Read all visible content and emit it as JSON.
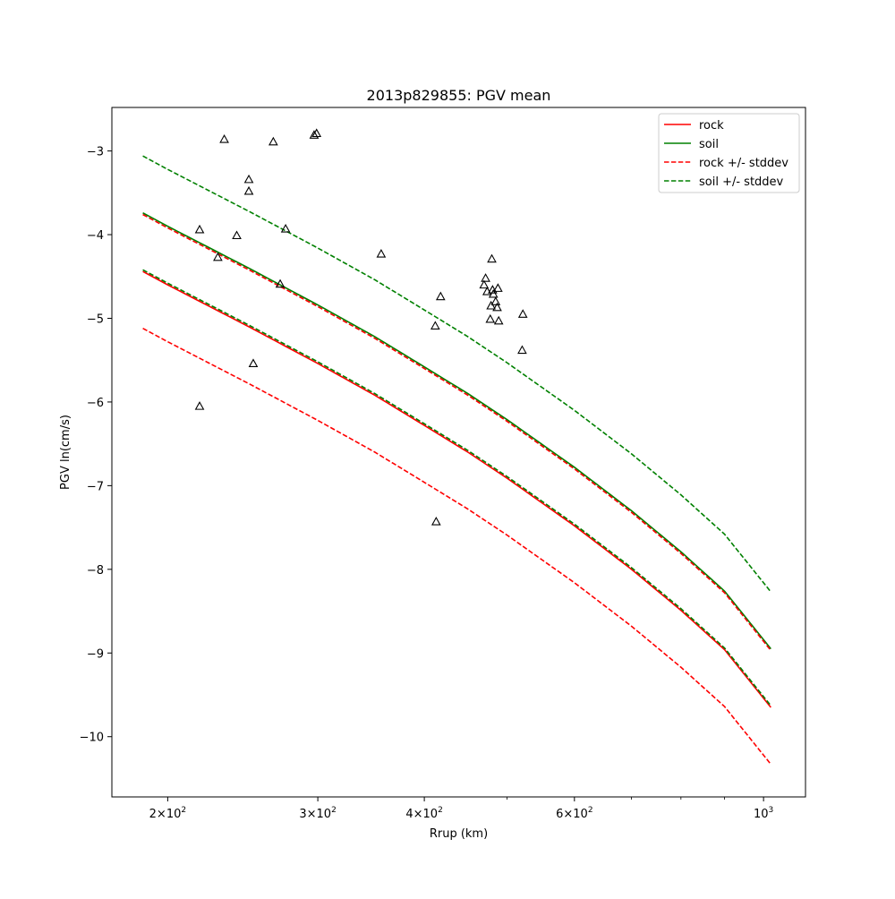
{
  "chart_data": {
    "type": "line",
    "title": "2013p829855: PGV mean",
    "xlabel": "Rrup (km)",
    "ylabel": "PGV ln(cm/s)",
    "xscale": "log",
    "xlim": [
      172,
      1120
    ],
    "ylim": [
      -10.72,
      -2.48
    ],
    "x_ticks": [
      {
        "value": 200,
        "base": "2",
        "mant": "10",
        "exp": "2"
      },
      {
        "value": 300,
        "base": "3",
        "mant": "10",
        "exp": "2"
      },
      {
        "value": 400,
        "base": "4",
        "mant": "10",
        "exp": "2"
      },
      {
        "value": 600,
        "base": "6",
        "mant": "10",
        "exp": "2"
      },
      {
        "value": 1000,
        "base": "",
        "mant": "10",
        "exp": "3"
      }
    ],
    "x_minor_ticks": [
      500,
      700,
      800,
      900
    ],
    "y_ticks": [
      {
        "value": -3,
        "label": "−3"
      },
      {
        "value": -4,
        "label": "−4"
      },
      {
        "value": -5,
        "label": "−5"
      },
      {
        "value": -6,
        "label": "−6"
      },
      {
        "value": -7,
        "label": "−7"
      },
      {
        "value": -8,
        "label": "−8"
      },
      {
        "value": -9,
        "label": "−9"
      },
      {
        "value": -10,
        "label": "−10"
      }
    ],
    "grid": false,
    "legend_position": "top-right",
    "x": [
      187,
      200,
      250,
      300,
      350,
      400,
      450,
      500,
      600,
      700,
      800,
      900,
      1020
    ],
    "series": [
      {
        "name": "rock",
        "color": "#ff0000",
        "dash": "solid",
        "values": [
          -4.44,
          -4.6,
          -5.11,
          -5.54,
          -5.92,
          -6.28,
          -6.6,
          -6.91,
          -7.48,
          -8.0,
          -8.49,
          -8.96,
          -9.65
        ]
      },
      {
        "name": "soil",
        "color": "#008000",
        "dash": "solid",
        "values": [
          -3.74,
          -3.9,
          -4.41,
          -4.84,
          -5.22,
          -5.58,
          -5.9,
          -6.21,
          -6.78,
          -7.3,
          -7.79,
          -8.26,
          -8.95
        ]
      },
      {
        "name": "rock +/- stddev",
        "color": "#ff0000",
        "dash": "dashed",
        "values": [
          -3.76,
          -3.92,
          -4.43,
          -4.86,
          -5.24,
          -5.6,
          -5.92,
          -6.23,
          -6.8,
          -7.32,
          -7.81,
          -8.28,
          -8.97
        ]
      },
      {
        "name": "",
        "color": "#ff0000",
        "dash": "dashed",
        "values": [
          -5.12,
          -5.28,
          -5.79,
          -6.22,
          -6.6,
          -6.96,
          -7.28,
          -7.59,
          -8.16,
          -8.68,
          -9.17,
          -9.64,
          -10.33
        ]
      },
      {
        "name": "soil +/- stddev",
        "color": "#008000",
        "dash": "dashed",
        "values": [
          -3.06,
          -3.22,
          -3.73,
          -4.16,
          -4.54,
          -4.9,
          -5.22,
          -5.53,
          -6.1,
          -6.62,
          -7.11,
          -7.58,
          -8.27
        ]
      },
      {
        "name": "",
        "color": "#008000",
        "dash": "dashed",
        "values": [
          -4.42,
          -4.58,
          -5.09,
          -5.52,
          -5.9,
          -6.26,
          -6.58,
          -6.89,
          -7.46,
          -7.98,
          -8.47,
          -8.94,
          -9.63
        ]
      }
    ],
    "observations": {
      "marker": "triangle",
      "points": [
        {
          "x": 218,
          "y": -3.94
        },
        {
          "x": 218,
          "y": -6.05
        },
        {
          "x": 229,
          "y": -4.27
        },
        {
          "x": 233,
          "y": -2.86
        },
        {
          "x": 241,
          "y": -4.01
        },
        {
          "x": 249,
          "y": -3.34
        },
        {
          "x": 249,
          "y": -3.48
        },
        {
          "x": 252,
          "y": -5.54
        },
        {
          "x": 266,
          "y": -2.89
        },
        {
          "x": 271,
          "y": -4.59
        },
        {
          "x": 275,
          "y": -3.93
        },
        {
          "x": 297,
          "y": -2.81
        },
        {
          "x": 299,
          "y": -2.79
        },
        {
          "x": 356,
          "y": -4.23
        },
        {
          "x": 412,
          "y": -5.09
        },
        {
          "x": 413,
          "y": -7.43
        },
        {
          "x": 418,
          "y": -4.74
        },
        {
          "x": 470,
          "y": -4.6
        },
        {
          "x": 472,
          "y": -4.52
        },
        {
          "x": 474,
          "y": -4.68
        },
        {
          "x": 478,
          "y": -5.01
        },
        {
          "x": 479,
          "y": -4.85
        },
        {
          "x": 480,
          "y": -4.29
        },
        {
          "x": 481,
          "y": -4.66
        },
        {
          "x": 482,
          "y": -4.71
        },
        {
          "x": 485,
          "y": -4.8
        },
        {
          "x": 487,
          "y": -4.87
        },
        {
          "x": 488,
          "y": -4.64
        },
        {
          "x": 489,
          "y": -5.03
        },
        {
          "x": 522,
          "y": -4.95
        },
        {
          "x": 521,
          "y": -5.38
        }
      ]
    }
  },
  "legend": {
    "items": [
      {
        "label": "rock",
        "color": "#ff0000",
        "dash": "solid"
      },
      {
        "label": "soil",
        "color": "#008000",
        "dash": "solid"
      },
      {
        "label": "rock +/- stddev",
        "color": "#ff0000",
        "dash": "dashed"
      },
      {
        "label": "soil +/- stddev",
        "color": "#008000",
        "dash": "dashed"
      }
    ]
  }
}
